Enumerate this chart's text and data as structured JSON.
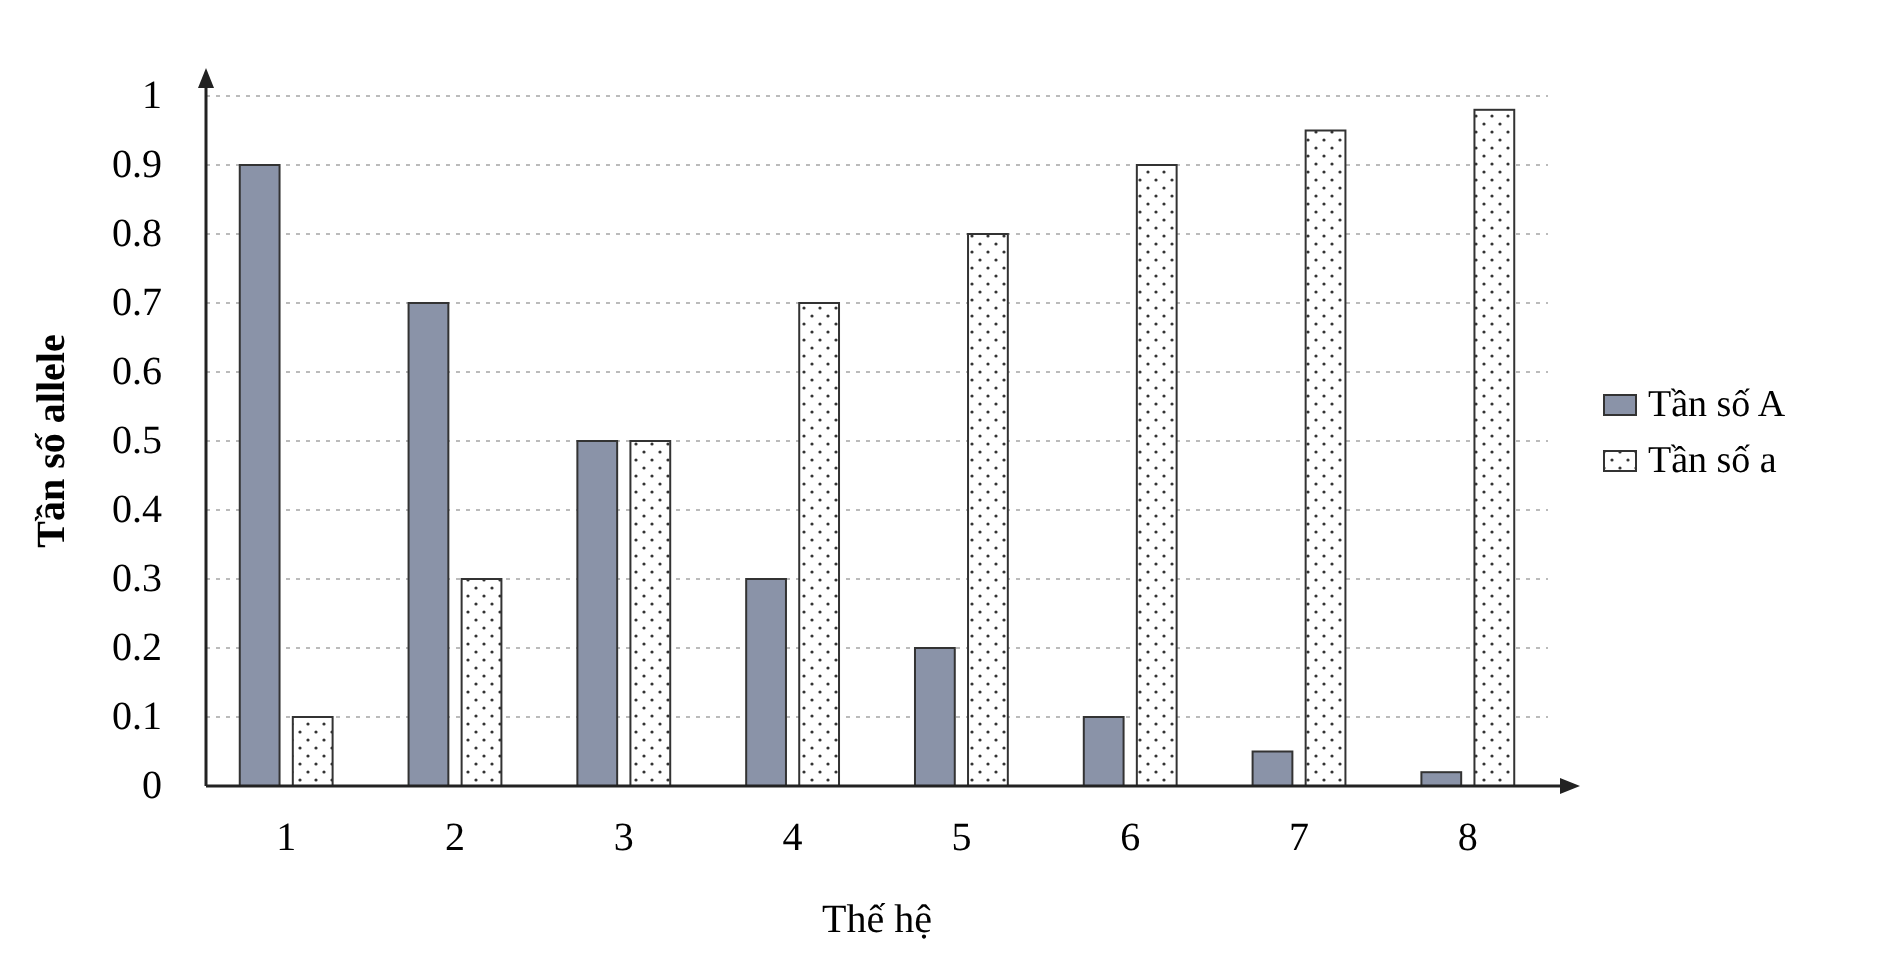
{
  "chart_data": {
    "type": "bar",
    "xlabel": "Thế hệ",
    "ylabel": "Tần số allele",
    "categories": [
      "1",
      "2",
      "3",
      "4",
      "5",
      "6",
      "7",
      "8"
    ],
    "series": [
      {
        "name": "Tần số A",
        "color": "#8a93a8",
        "values": [
          0.9,
          0.7,
          0.5,
          0.3,
          0.2,
          0.1,
          0.05,
          0.02
        ]
      },
      {
        "name": "Tần số a",
        "color": "#333333",
        "values": [
          0.1,
          0.3,
          0.5,
          0.7,
          0.8,
          0.9,
          0.95,
          0.98
        ]
      }
    ],
    "ylim": [
      0,
      1
    ],
    "yticks": [
      0,
      0.1,
      0.2,
      0.3,
      0.4,
      0.5,
      0.6,
      0.7,
      0.8,
      0.9,
      1
    ],
    "grid": "y",
    "legend": "right"
  }
}
